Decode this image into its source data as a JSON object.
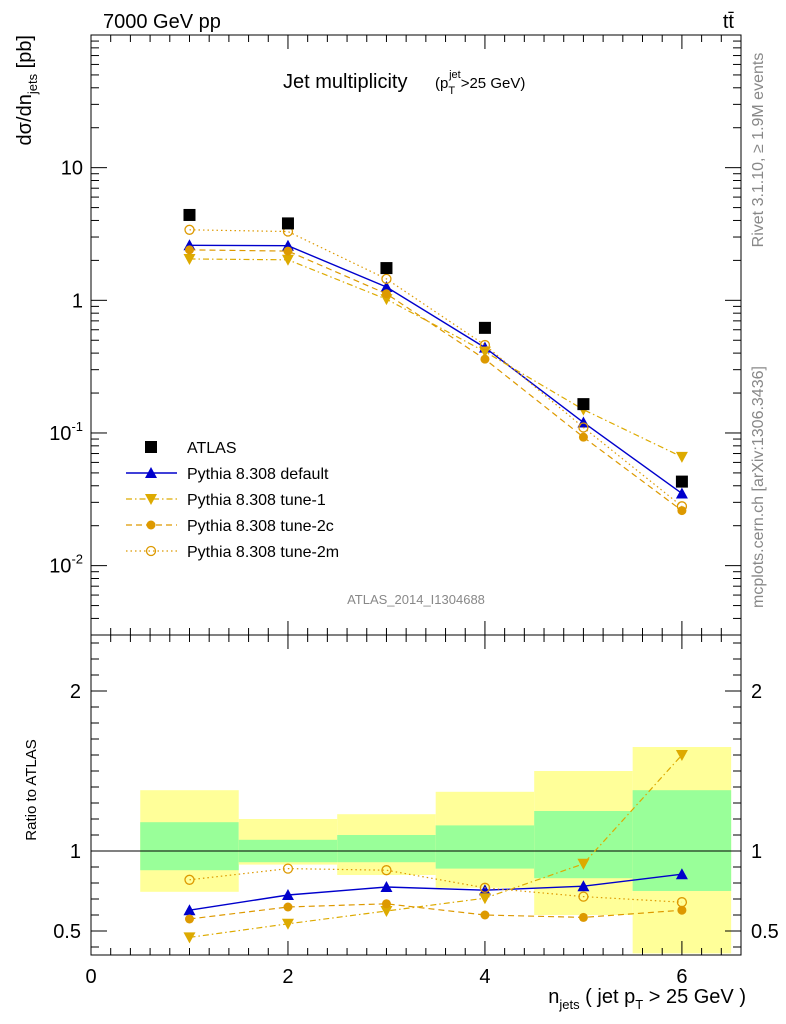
{
  "header": {
    "energy_label": "7000 GeV pp",
    "process_label": "tt̄"
  },
  "side_labels": {
    "rivet": "Rivet 3.1.10, ≥ 1.9M events",
    "mcplots": "mcplots.cern.ch [arXiv:1306.3436]"
  },
  "chart_data": {
    "type": "scatter",
    "title": "Jet multiplicity",
    "title_cut": "(p_T^jet >25 GeV)",
    "analysis_label": "ATLAS_2014_I1304688",
    "ylabel_main": "dσ/dn_jets [pb]",
    "ylabel_ratio": "Ratio to ATLAS",
    "xlabel": "n_jets ( jet p_T > 25 GeV )",
    "main_yscale": "log",
    "main_ylim": [
      0.003,
      100
    ],
    "main_ytick_labels": [
      "10",
      "1",
      "10^-1",
      "10^-2"
    ],
    "ratio_ylim": [
      0.35,
      2.35
    ],
    "ratio_ytick_labels": [
      "2",
      "1",
      "0.5"
    ],
    "xlim": [
      0,
      6.6
    ],
    "xtick_labels": [
      "0",
      "2",
      "4",
      "6"
    ],
    "x": [
      1,
      2,
      3,
      4,
      5,
      6
    ],
    "series": [
      {
        "name": "ATLAS",
        "color": "#000000",
        "marker": "square",
        "line": "none",
        "values": [
          4.4,
          3.8,
          1.75,
          0.62,
          0.165,
          0.043
        ],
        "ratio": [
          1,
          1,
          1,
          1,
          1,
          1
        ]
      },
      {
        "name": "Pythia 8.308 default",
        "color": "#0000cc",
        "marker": "triangle-up",
        "line": "solid",
        "values": [
          2.6,
          2.58,
          1.26,
          0.44,
          0.12,
          0.035
        ],
        "ratio": [
          0.63,
          0.725,
          0.775,
          0.755,
          0.78,
          0.855
        ]
      },
      {
        "name": "Pythia 8.308 tune-1",
        "color": "#ddaa00",
        "marker": "triangle-down",
        "line": "dashdot",
        "values": [
          2.05,
          2.02,
          1.02,
          0.41,
          0.15,
          0.066
        ],
        "ratio": [
          0.46,
          0.545,
          0.625,
          0.705,
          0.92,
          1.6
        ]
      },
      {
        "name": "Pythia 8.308 tune-2c",
        "color": "#dd9900",
        "marker": "circle",
        "line": "dashed",
        "values": [
          2.4,
          2.35,
          1.12,
          0.36,
          0.093,
          0.026
        ],
        "ratio": [
          0.575,
          0.65,
          0.67,
          0.6,
          0.585,
          0.63
        ]
      },
      {
        "name": "Pythia 8.308 tune-2m",
        "color": "#dd9900",
        "marker": "open-circle",
        "line": "dotted",
        "values": [
          3.4,
          3.3,
          1.45,
          0.46,
          0.11,
          0.028
        ],
        "ratio": [
          0.82,
          0.89,
          0.88,
          0.77,
          0.715,
          0.68
        ]
      }
    ],
    "ratio_bands": {
      "bin_edges": [
        0.5,
        1.5,
        2.5,
        3.5,
        4.5,
        5.5,
        6.5
      ],
      "green_lo": [
        0.88,
        0.93,
        0.93,
        0.89,
        0.83,
        0.75
      ],
      "green_hi": [
        1.18,
        1.07,
        1.1,
        1.16,
        1.25,
        1.38
      ],
      "yellow_lo": [
        0.745,
        0.915,
        0.85,
        0.77,
        0.6,
        0.36
      ],
      "yellow_hi": [
        1.38,
        1.2,
        1.23,
        1.37,
        1.5,
        1.65
      ]
    },
    "legend_position": "lower-left"
  }
}
